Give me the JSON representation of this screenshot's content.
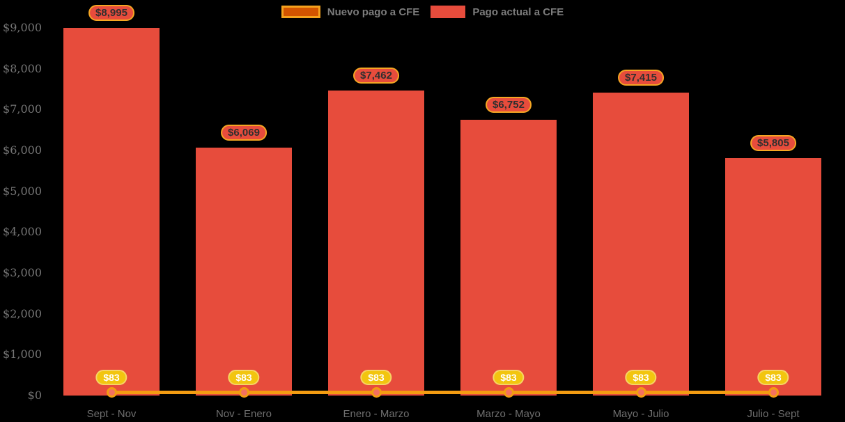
{
  "background": "#000000",
  "colors": {
    "bar": "#E74C3C",
    "line": "#F39C12",
    "marker_fill": "#F4715F",
    "marker_ring": "#F39C12",
    "legend_new_fill": "#D35400",
    "legend_new_border": "#F5A21D",
    "value_pill_bg": "#E74C3C",
    "value_pill_border": "#F5A623",
    "value_pill_text": "#2F2F2F",
    "new_pill_bg": "#F2C50F",
    "new_pill_text": "#FFFFFF",
    "axis_text": "#757575"
  },
  "legend": {
    "items": [
      {
        "label": "Nuevo pago a CFE"
      },
      {
        "label": "Pago actual a CFE"
      }
    ]
  },
  "chart_data": {
    "type": "bar",
    "title": "",
    "xlabel": "",
    "ylabel": "",
    "categories": [
      "Sept - Nov",
      "Nov - Enero",
      "Enero - Marzo",
      "Marzo - Mayo",
      "Mayo - Julio",
      "Julio - Sept"
    ],
    "series": [
      {
        "name": "Nuevo pago a CFE",
        "type": "line",
        "color": "#F39C12",
        "values": [
          83,
          83,
          83,
          83,
          83,
          83
        ],
        "labels": [
          "$83",
          "$83",
          "$83",
          "$83",
          "$83",
          "$83"
        ]
      },
      {
        "name": "Pago actual a CFE",
        "type": "bar",
        "color": "#E74C3C",
        "values": [
          8995,
          6069,
          7462,
          6752,
          7415,
          5805
        ],
        "labels": [
          "$8,995",
          "$6,069",
          "$7,462",
          "$6,752",
          "$7,415",
          "$5,805"
        ]
      }
    ],
    "ylim": [
      0,
      9000
    ],
    "y_ticks": [
      {
        "value": 0,
        "label": "$0"
      },
      {
        "value": 1000,
        "label": "$1,000"
      },
      {
        "value": 2000,
        "label": "$2,000"
      },
      {
        "value": 3000,
        "label": "$3,000"
      },
      {
        "value": 4000,
        "label": "$4,000"
      },
      {
        "value": 5000,
        "label": "$5,000"
      },
      {
        "value": 6000,
        "label": "$6,000"
      },
      {
        "value": 7000,
        "label": "$7,000"
      },
      {
        "value": 8000,
        "label": "$8,000"
      },
      {
        "value": 9000,
        "label": "$9,000"
      }
    ],
    "grid": false,
    "legend_position": "top-center",
    "background": "#000000"
  }
}
